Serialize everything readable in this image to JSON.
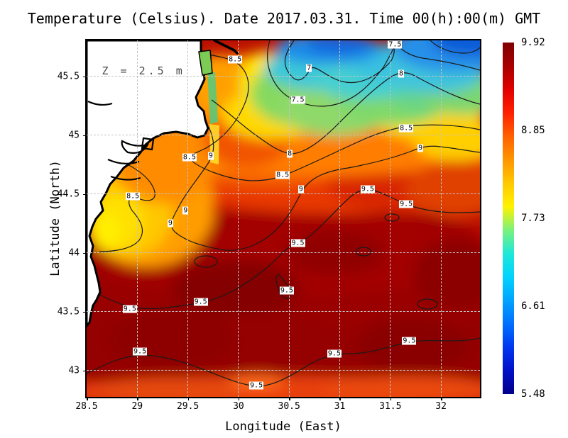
{
  "title": "Temperature (Celsius). Date 2017.03.31. Time 00(h):00(m) GMT",
  "annotation": "Z = 2.5 m",
  "axes": {
    "x": {
      "label": "Longitude (East)",
      "tick_labels": [
        "28.5",
        "29",
        "29.5",
        "30",
        "30.5",
        "31",
        "31.5",
        "32"
      ]
    },
    "y": {
      "label": "Latitude (North)",
      "tick_labels": [
        "45.5",
        "45",
        "44.5",
        "44",
        "43.5",
        "43"
      ]
    }
  },
  "colorbar": {
    "tick_labels": [
      "9.92",
      "8.85",
      "7.73",
      "6.61",
      "5.48"
    ],
    "min": 5.48,
    "max": 9.92,
    "colormap": "jet",
    "colormap_stops": [
      "#7f0000",
      "#a80000",
      "#e00000",
      "#ff2000",
      "#ff6000",
      "#ff9500",
      "#ffc800",
      "#fff200",
      "#7bf27b",
      "#1ee8d8",
      "#00d2ff",
      "#00a4ff",
      "#0070ff",
      "#0038f0",
      "#0010c8",
      "#00008b"
    ]
  },
  "colors": {
    "land": "#ffffff",
    "coastline": "#000000",
    "grid": "#c4c4c4",
    "contour": "#1a1a1a",
    "frame": "#000000"
  },
  "chart_data": {
    "type": "heatmap",
    "variable": "Temperature (Celsius)",
    "date": "2017.03.31",
    "time": "00(h):00(m) GMT",
    "depth_annotation": "Z = 2.5 m",
    "xlabel": "Longitude (East)",
    "ylabel": "Latitude (North)",
    "xlim": [
      28.5,
      32.39
    ],
    "ylim": [
      42.78,
      45.81
    ],
    "xticks": [
      28.5,
      29,
      29.5,
      30,
      30.5,
      31,
      31.5,
      32
    ],
    "yticks": [
      45.5,
      45,
      44.5,
      44,
      43.5,
      43
    ],
    "grid": true,
    "colorbar_ticks": [
      9.92,
      8.85,
      7.73,
      6.61,
      5.48
    ],
    "contour_levels": [
      7,
      7.5,
      8,
      8.5,
      9,
      9.5
    ],
    "labeled_points": [
      {
        "lon": 31.55,
        "lat": 45.77,
        "value": 7.5
      },
      {
        "lon": 30.7,
        "lat": 45.57,
        "value": 7
      },
      {
        "lon": 31.61,
        "lat": 45.52,
        "value": 8
      },
      {
        "lon": 30.59,
        "lat": 45.3,
        "value": 7.5
      },
      {
        "lon": 29.97,
        "lat": 45.64,
        "value": 8.5
      },
      {
        "lon": 31.66,
        "lat": 45.06,
        "value": 8.5
      },
      {
        "lon": 31.8,
        "lat": 44.89,
        "value": 9
      },
      {
        "lon": 30.51,
        "lat": 44.84,
        "value": 8
      },
      {
        "lon": 30.44,
        "lat": 44.66,
        "value": 8.5
      },
      {
        "lon": 29.52,
        "lat": 44.81,
        "value": 8.5
      },
      {
        "lon": 29.73,
        "lat": 44.82,
        "value": 9
      },
      {
        "lon": 28.96,
        "lat": 44.48,
        "value": 8.5
      },
      {
        "lon": 29.48,
        "lat": 44.36,
        "value": 9
      },
      {
        "lon": 29.33,
        "lat": 44.25,
        "value": 9
      },
      {
        "lon": 30.62,
        "lat": 44.54,
        "value": 9
      },
      {
        "lon": 31.28,
        "lat": 44.54,
        "value": 9.5
      },
      {
        "lon": 31.66,
        "lat": 44.41,
        "value": 9.5
      },
      {
        "lon": 30.59,
        "lat": 44.08,
        "value": 9.5
      },
      {
        "lon": 30.48,
        "lat": 43.68,
        "value": 9.5
      },
      {
        "lon": 28.93,
        "lat": 43.52,
        "value": 9.5
      },
      {
        "lon": 29.63,
        "lat": 43.58,
        "value": 9.5
      },
      {
        "lon": 29.03,
        "lat": 43.16,
        "value": 9.5
      },
      {
        "lon": 30.18,
        "lat": 42.87,
        "value": 9.5
      },
      {
        "lon": 30.95,
        "lat": 43.14,
        "value": 9.5
      },
      {
        "lon": 31.69,
        "lat": 43.25,
        "value": 9.5
      }
    ]
  }
}
